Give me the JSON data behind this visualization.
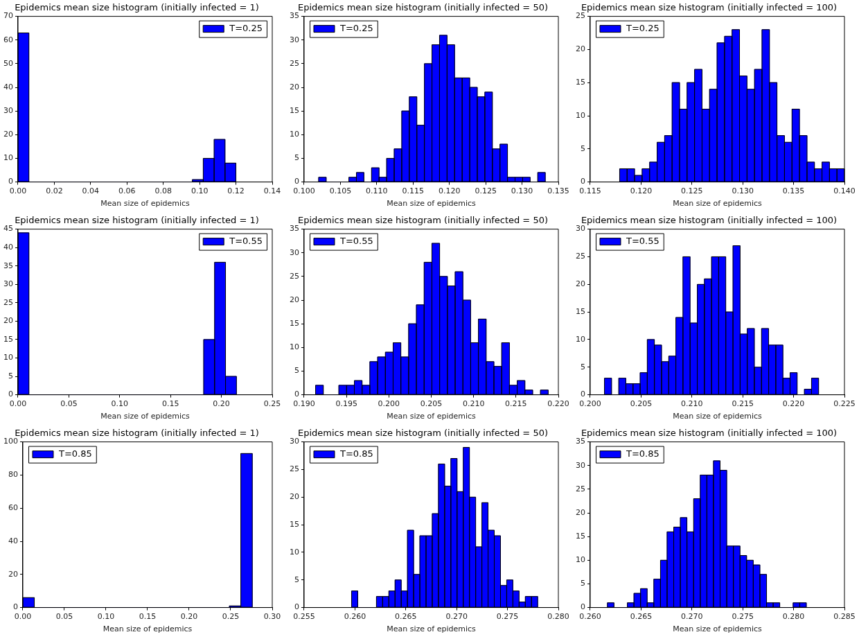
{
  "chart_data": [
    {
      "type": "histogram",
      "title": "Epidemics mean size histogram (initially infected = 1)",
      "xlabel": "Mean size of epidemics",
      "legend": "top right",
      "bins": [
        0,
        0.006,
        0.012,
        0.018,
        0.024,
        0.03,
        0.036,
        0.042,
        0.048,
        0.054,
        0.06,
        0.066,
        0.072,
        0.078,
        0.084,
        0.09,
        0.096,
        0.102,
        0.108,
        0.114,
        0.12
      ],
      "series": [
        {
          "name": "T=0.25",
          "color": "#0000ff",
          "values": [
            63,
            0,
            0,
            0,
            0,
            0,
            0,
            0,
            0,
            0,
            0,
            0,
            0,
            0,
            0,
            0,
            1,
            10,
            18,
            8
          ]
        }
      ],
      "xlim": [
        0,
        0.14
      ],
      "xticks": [
        {
          "value": 0,
          "label": "0.00"
        },
        {
          "value": 0.02,
          "label": "0.02"
        },
        {
          "value": 0.04,
          "label": "0.04"
        },
        {
          "value": 0.06,
          "label": "0.06"
        },
        {
          "value": 0.08,
          "label": "0.08"
        },
        {
          "value": 0.1,
          "label": "0.10"
        },
        {
          "value": 0.12,
          "label": "0.12"
        },
        {
          "value": 0.14,
          "label": "0.14"
        }
      ],
      "ylim": [
        0,
        70
      ],
      "yticks": [
        0,
        10,
        20,
        30,
        40,
        50,
        60,
        70
      ]
    },
    {
      "type": "histogram",
      "title": "Epidemics mean size histogram (initially infected = 50)",
      "xlabel": "Mean size of epidemics",
      "legend": "top left",
      "bins": [
        0.102,
        0.10304,
        0.10408,
        0.10512,
        0.10616,
        0.1072,
        0.10824,
        0.10928,
        0.11032,
        0.11136,
        0.1124,
        0.11344,
        0.11448,
        0.11552,
        0.11656,
        0.1176,
        0.11864,
        0.11968,
        0.12072,
        0.12176,
        0.1228,
        0.12384,
        0.12488,
        0.12592,
        0.12696,
        0.128,
        0.12904,
        0.13008,
        0.13112,
        0.13216,
        0.1332
      ],
      "series": [
        {
          "name": "T=0.25",
          "color": "#0000ff",
          "values": [
            1,
            0,
            0,
            0,
            1,
            2,
            0,
            3,
            1,
            5,
            7,
            15,
            18,
            12,
            25,
            29,
            31,
            29,
            22,
            22,
            20,
            18,
            19,
            7,
            8,
            1,
            1,
            1,
            0,
            2
          ]
        }
      ],
      "xlim": [
        0.1,
        0.135
      ],
      "xticks": [
        {
          "value": 0.1,
          "label": "0.100"
        },
        {
          "value": 0.105,
          "label": "0.105"
        },
        {
          "value": 0.11,
          "label": "0.110"
        },
        {
          "value": 0.115,
          "label": "0.115"
        },
        {
          "value": 0.12,
          "label": "0.120"
        },
        {
          "value": 0.125,
          "label": "0.125"
        },
        {
          "value": 0.13,
          "label": "0.130"
        },
        {
          "value": 0.135,
          "label": "0.135"
        }
      ],
      "ylim": [
        0,
        35
      ],
      "yticks": [
        0,
        5,
        10,
        15,
        20,
        25,
        30,
        35
      ]
    },
    {
      "type": "histogram",
      "title": "Epidemics mean size histogram (initially infected = 100)",
      "xlabel": "Mean size of epidemics",
      "legend": "top left",
      "bins": [
        0.11789,
        0.11863,
        0.11936,
        0.1201,
        0.12084,
        0.12158,
        0.12231,
        0.12305,
        0.12379,
        0.12452,
        0.12526,
        0.126,
        0.12673,
        0.12747,
        0.12821,
        0.12895,
        0.12968,
        0.13042,
        0.13116,
        0.13189,
        0.13263,
        0.13337,
        0.1341,
        0.13484,
        0.13558,
        0.13632,
        0.13705,
        0.13779,
        0.13853,
        0.13926,
        0.14
      ],
      "series": [
        {
          "name": "T=0.25",
          "color": "#0000ff",
          "values": [
            2,
            2,
            1,
            2,
            3,
            6,
            7,
            15,
            11,
            15,
            17,
            11,
            14,
            21,
            22,
            23,
            16,
            14,
            17,
            23,
            15,
            7,
            6,
            11,
            7,
            3,
            2,
            3,
            2,
            2
          ]
        }
      ],
      "xlim": [
        0.115,
        0.14
      ],
      "xticks": [
        {
          "value": 0.115,
          "label": "0.115"
        },
        {
          "value": 0.12,
          "label": "0.120"
        },
        {
          "value": 0.125,
          "label": "0.125"
        },
        {
          "value": 0.13,
          "label": "0.130"
        },
        {
          "value": 0.135,
          "label": "0.135"
        },
        {
          "value": 0.14,
          "label": "0.140"
        }
      ],
      "ylim": [
        0,
        25
      ],
      "yticks": [
        0,
        5,
        10,
        15,
        20,
        25
      ]
    },
    {
      "type": "histogram",
      "title": "Epidemics mean size histogram (initially infected = 1)",
      "xlabel": "Mean size of epidemics",
      "legend": "top right",
      "bins": [
        0,
        0.01074,
        0.02148,
        0.03222,
        0.04296,
        0.0537,
        0.06444,
        0.07518,
        0.08592,
        0.09666,
        0.1074,
        0.11814,
        0.12888,
        0.13962,
        0.15036,
        0.1611,
        0.17184,
        0.18258,
        0.19332,
        0.20406,
        0.2148
      ],
      "series": [
        {
          "name": "T=0.55",
          "color": "#0000ff",
          "values": [
            44,
            0,
            0,
            0,
            0,
            0,
            0,
            0,
            0,
            0,
            0,
            0,
            0,
            0,
            0,
            0,
            0,
            15,
            36,
            5
          ]
        }
      ],
      "xlim": [
        0,
        0.25
      ],
      "xticks": [
        {
          "value": 0,
          "label": "0.00"
        },
        {
          "value": 0.05,
          "label": "0.05"
        },
        {
          "value": 0.1,
          "label": "0.10"
        },
        {
          "value": 0.15,
          "label": "0.15"
        },
        {
          "value": 0.2,
          "label": "0.20"
        },
        {
          "value": 0.25,
          "label": "0.25"
        }
      ],
      "ylim": [
        0,
        45
      ],
      "yticks": [
        0,
        5,
        10,
        15,
        20,
        25,
        30,
        35,
        40,
        45
      ]
    },
    {
      "type": "histogram",
      "title": "Epidemics mean size histogram (initially infected = 50)",
      "xlabel": "Mean size of epidemics",
      "legend": "top left",
      "bins": [
        0.19135,
        0.19227,
        0.19318,
        0.1941,
        0.19501,
        0.19593,
        0.19684,
        0.19776,
        0.19867,
        0.19959,
        0.2005,
        0.20142,
        0.20233,
        0.20325,
        0.20416,
        0.20508,
        0.20599,
        0.20691,
        0.20782,
        0.20874,
        0.20965,
        0.21057,
        0.21148,
        0.2124,
        0.21331,
        0.21423,
        0.21514,
        0.21606,
        0.21697,
        0.21789,
        0.2188
      ],
      "series": [
        {
          "name": "T=0.55",
          "color": "#0000ff",
          "values": [
            2,
            0,
            0,
            2,
            2,
            3,
            2,
            7,
            8,
            9,
            11,
            8,
            15,
            19,
            28,
            32,
            25,
            23,
            26,
            20,
            11,
            16,
            7,
            6,
            11,
            2,
            3,
            1,
            0,
            1
          ]
        }
      ],
      "xlim": [
        0.19,
        0.22
      ],
      "xticks": [
        {
          "value": 0.19,
          "label": "0.190"
        },
        {
          "value": 0.195,
          "label": "0.195"
        },
        {
          "value": 0.2,
          "label": "0.200"
        },
        {
          "value": 0.205,
          "label": "0.205"
        },
        {
          "value": 0.21,
          "label": "0.210"
        },
        {
          "value": 0.215,
          "label": "0.215"
        },
        {
          "value": 0.22,
          "label": "0.220"
        }
      ],
      "ylim": [
        0,
        35
      ],
      "yticks": [
        0,
        5,
        10,
        15,
        20,
        25,
        30,
        35
      ]
    },
    {
      "type": "histogram",
      "title": "Epidemics mean size histogram (initially infected = 100)",
      "xlabel": "Mean size of epidemics",
      "legend": "top left",
      "bins": [
        0.2014,
        0.2021,
        0.2028,
        0.20351,
        0.20421,
        0.20491,
        0.20561,
        0.20631,
        0.20702,
        0.20772,
        0.20842,
        0.20912,
        0.20982,
        0.21053,
        0.21123,
        0.21193,
        0.21263,
        0.21333,
        0.21404,
        0.21474,
        0.21544,
        0.21614,
        0.21684,
        0.21755,
        0.21825,
        0.21895,
        0.21965,
        0.22035,
        0.22106,
        0.22176,
        0.22246
      ],
      "series": [
        {
          "name": "T=0.55",
          "color": "#0000ff",
          "values": [
            3,
            0,
            3,
            2,
            2,
            4,
            10,
            9,
            6,
            7,
            14,
            25,
            13,
            20,
            21,
            25,
            25,
            15,
            27,
            11,
            12,
            5,
            12,
            9,
            9,
            3,
            4,
            0,
            1,
            3
          ]
        }
      ],
      "xlim": [
        0.2,
        0.225
      ],
      "xticks": [
        {
          "value": 0.2,
          "label": "0.200"
        },
        {
          "value": 0.205,
          "label": "0.205"
        },
        {
          "value": 0.21,
          "label": "0.210"
        },
        {
          "value": 0.215,
          "label": "0.215"
        },
        {
          "value": 0.22,
          "label": "0.220"
        },
        {
          "value": 0.225,
          "label": "0.225"
        }
      ],
      "ylim": [
        0,
        30
      ],
      "yticks": [
        0,
        5,
        10,
        15,
        20,
        25,
        30
      ]
    },
    {
      "type": "histogram",
      "title": "Epidemics mean size histogram (initially infected = 1)",
      "xlabel": "Mean size of epidemics",
      "legend": "top left",
      "bins": [
        0,
        0.0138,
        0.0276,
        0.0414,
        0.0552,
        0.069,
        0.0828,
        0.0966,
        0.1104,
        0.1242,
        0.138,
        0.1518,
        0.1656,
        0.1794,
        0.1932,
        0.207,
        0.2208,
        0.2346,
        0.2484,
        0.2622,
        0.276
      ],
      "series": [
        {
          "name": "T=0.85",
          "color": "#0000ff",
          "values": [
            6,
            0,
            0,
            0,
            0,
            0,
            0,
            0,
            0,
            0,
            0,
            0,
            0,
            0,
            0,
            0,
            0,
            0,
            1,
            93
          ]
        }
      ],
      "xlim": [
        0,
        0.3
      ],
      "xticks": [
        {
          "value": 0,
          "label": "0.00"
        },
        {
          "value": 0.05,
          "label": "0.05"
        },
        {
          "value": 0.1,
          "label": "0.10"
        },
        {
          "value": 0.15,
          "label": "0.15"
        },
        {
          "value": 0.2,
          "label": "0.20"
        },
        {
          "value": 0.25,
          "label": "0.25"
        },
        {
          "value": 0.3,
          "label": "0.30"
        }
      ],
      "ylim": [
        0,
        100
      ],
      "yticks": [
        0,
        20,
        40,
        60,
        80,
        100
      ]
    },
    {
      "type": "histogram",
      "title": "Epidemics mean size histogram (initially infected = 50)",
      "xlabel": "Mean size of epidemics",
      "legend": "top left",
      "bins": [
        0.25967,
        0.26028,
        0.26089,
        0.2615,
        0.26211,
        0.26272,
        0.26333,
        0.26394,
        0.26455,
        0.26516,
        0.26577,
        0.26638,
        0.26699,
        0.2676,
        0.26821,
        0.26882,
        0.26943,
        0.27004,
        0.27065,
        0.27126,
        0.27187,
        0.27248,
        0.27309,
        0.2737,
        0.27431,
        0.27492,
        0.27553,
        0.27614,
        0.27675,
        0.27736,
        0.27797
      ],
      "series": [
        {
          "name": "T=0.85",
          "color": "#0000ff",
          "values": [
            3,
            0,
            0,
            0,
            2,
            2,
            3,
            5,
            3,
            14,
            6,
            13,
            13,
            17,
            26,
            22,
            27,
            21,
            29,
            20,
            11,
            19,
            14,
            13,
            4,
            5,
            3,
            1,
            2,
            2
          ]
        }
      ],
      "xlim": [
        0.255,
        0.28
      ],
      "xticks": [
        {
          "value": 0.255,
          "label": "0.255"
        },
        {
          "value": 0.26,
          "label": "0.260"
        },
        {
          "value": 0.265,
          "label": "0.265"
        },
        {
          "value": 0.27,
          "label": "0.270"
        },
        {
          "value": 0.275,
          "label": "0.275"
        },
        {
          "value": 0.28,
          "label": "0.280"
        }
      ],
      "ylim": [
        0,
        30
      ],
      "yticks": [
        0,
        5,
        10,
        15,
        20,
        25,
        30
      ]
    },
    {
      "type": "histogram",
      "title": "Epidemics mean size histogram (initially infected = 100)",
      "xlabel": "Mean size of epidemics",
      "legend": "top left",
      "bins": [
        0.26169,
        0.26234,
        0.26299,
        0.26365,
        0.2643,
        0.26495,
        0.2656,
        0.26625,
        0.26691,
        0.26756,
        0.26821,
        0.26886,
        0.26951,
        0.27017,
        0.27082,
        0.27147,
        0.27212,
        0.27277,
        0.27343,
        0.27408,
        0.27473,
        0.27538,
        0.27603,
        0.27669,
        0.27734,
        0.27799,
        0.27864,
        0.27929,
        0.27995,
        0.2806,
        0.28125
      ],
      "series": [
        {
          "name": "T=0.85",
          "color": "#0000ff",
          "values": [
            1,
            0,
            0,
            1,
            3,
            4,
            1,
            6,
            10,
            16,
            17,
            19,
            16,
            23,
            28,
            28,
            31,
            29,
            13,
            13,
            11,
            10,
            9,
            7,
            1,
            1,
            0,
            0,
            1,
            1
          ]
        }
      ],
      "xlim": [
        0.26,
        0.285
      ],
      "xticks": [
        {
          "value": 0.26,
          "label": "0.260"
        },
        {
          "value": 0.265,
          "label": "0.265"
        },
        {
          "value": 0.27,
          "label": "0.270"
        },
        {
          "value": 0.275,
          "label": "0.275"
        },
        {
          "value": 0.28,
          "label": "0.280"
        },
        {
          "value": 0.285,
          "label": "0.285"
        }
      ],
      "ylim": [
        0,
        35
      ],
      "yticks": [
        0,
        5,
        10,
        15,
        20,
        25,
        30,
        35
      ]
    }
  ]
}
